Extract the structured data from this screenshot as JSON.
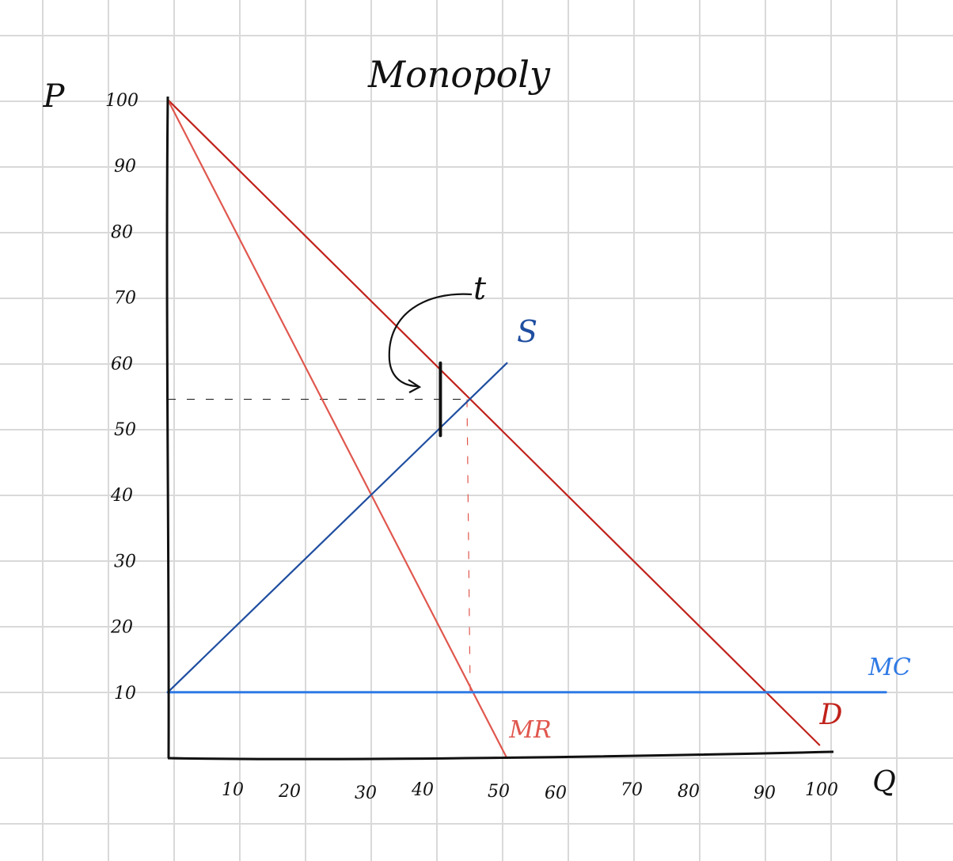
{
  "chart_data": {
    "type": "line",
    "title": "Monopoly",
    "xlabel": "Q",
    "ylabel": "P",
    "xlim": [
      0,
      100
    ],
    "ylim": [
      0,
      100
    ],
    "x_ticks": [
      "10",
      "20",
      "30",
      "40",
      "50",
      "60",
      "70",
      "80",
      "90",
      "100"
    ],
    "y_ticks": [
      "10",
      "20",
      "30",
      "40",
      "50",
      "60",
      "70",
      "80",
      "90",
      "100"
    ],
    "grid": true,
    "series": [
      {
        "name": "D",
        "color": "#c0221b",
        "x": [
          0,
          98
        ],
        "y": [
          100,
          2
        ]
      },
      {
        "name": "MR",
        "color": "#e0574e",
        "x": [
          0,
          51
        ],
        "y": [
          100,
          0
        ]
      },
      {
        "name": "S",
        "color": "#1f4ea0",
        "x": [
          0,
          51
        ],
        "y": [
          10,
          60
        ]
      },
      {
        "name": "MC",
        "color": "#2f7ae5",
        "x": [
          0,
          108
        ],
        "y": [
          10,
          10
        ]
      }
    ],
    "annotations": {
      "tax_label": "t",
      "tax_wedge": {
        "x": 41,
        "y_low": 49,
        "y_high": 60
      },
      "equilibrium": {
        "x": 45,
        "y": 54.5
      }
    }
  }
}
